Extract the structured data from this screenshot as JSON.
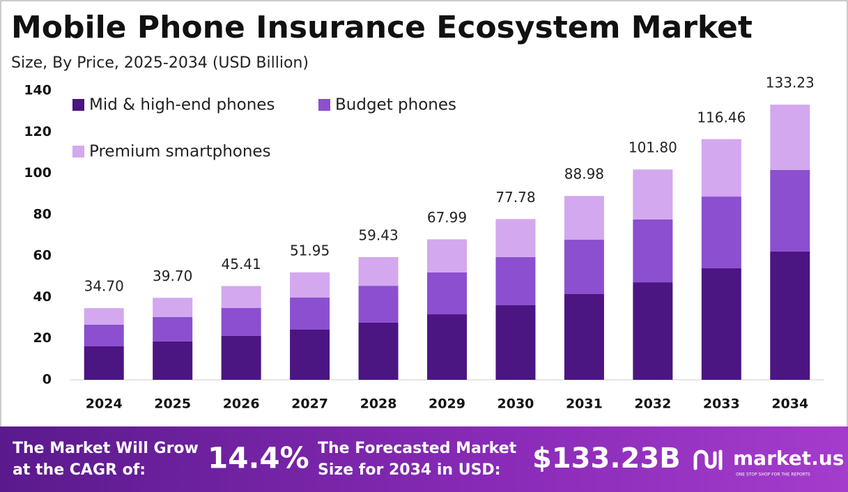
{
  "chart_data": {
    "type": "stacked_bar",
    "title": "Mobile Phone Insurance Ecosystem Market",
    "subtitle": "Size, By Price, 2025-2034 (USD Billion)",
    "categories": [
      "2024",
      "2025",
      "2026",
      "2027",
      "2028",
      "2029",
      "2030",
      "2031",
      "2032",
      "2033",
      "2034"
    ],
    "series": [
      {
        "name": "Mid & high-end phones",
        "color": "#4b1582",
        "values": [
          16.2,
          18.6,
          21.3,
          24.3,
          27.7,
          31.7,
          36.1,
          41.5,
          47.2,
          54.0,
          62.1
        ]
      },
      {
        "name": "Budget phones",
        "color": "#8b4fcf",
        "values": [
          10.5,
          11.8,
          13.5,
          15.5,
          17.8,
          20.3,
          23.3,
          26.3,
          30.4,
          34.7,
          39.5
        ]
      },
      {
        "name": "Premium smartphones",
        "color": "#d3a8ee",
        "values": [
          8.0,
          9.3,
          10.6,
          12.2,
          13.9,
          16.0,
          18.4,
          21.2,
          24.2,
          27.8,
          31.6
        ]
      }
    ],
    "totals": [
      34.7,
      39.7,
      45.41,
      51.95,
      59.43,
      67.99,
      77.78,
      88.98,
      101.8,
      116.46,
      133.23
    ],
    "value_labels": [
      "34.70",
      "39.70",
      "45.41",
      "51.95",
      "59.43",
      "67.99",
      "77.78",
      "88.98",
      "101.80",
      "116.46",
      "133.23"
    ],
    "ylim": [
      0,
      140
    ],
    "yticks": [
      0,
      20,
      40,
      60,
      80,
      100,
      120,
      140
    ],
    "grid": false,
    "legend": "top-left"
  },
  "banner": {
    "cagr_label": [
      "The Market Will Grow",
      "at the CAGR of:"
    ],
    "cagr_value": "14.4%",
    "forecast_label": [
      "The Forecasted Market",
      "Size for 2034 in USD:"
    ],
    "forecast_value": "$133.23B",
    "brand": "market.us",
    "tagline": "ONE STOP SHOP FOR THE REPORTS"
  }
}
